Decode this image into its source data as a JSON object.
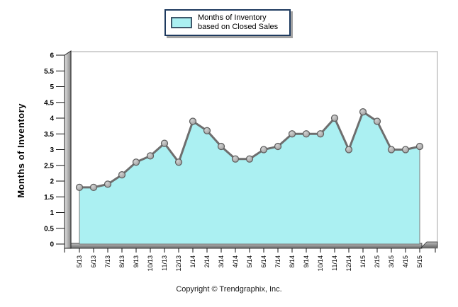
{
  "legend": {
    "label": "Months of Inventory based on Closed Sales"
  },
  "y_axis": {
    "title": "Months of Inventory"
  },
  "footer": {
    "copyright": "Copyright © Trendgraphix, Inc."
  },
  "colors": {
    "series_fill": "#abf0f2",
    "series_edge": "#4fa3ad",
    "series_line": "#6e6e6e",
    "marker_fill": "#9e9e9e",
    "marker_stroke": "#5f5f5f",
    "legend_border": "#1e3a5f",
    "axis_text": "#000000"
  },
  "chart_data": {
    "type": "area",
    "style": "3d-area-with-markers",
    "categories": [
      "5/13",
      "6/13",
      "7/13",
      "8/13",
      "9/13",
      "10/13",
      "11/13",
      "12/13",
      "1/14",
      "2/14",
      "3/14",
      "4/14",
      "5/14",
      "6/14",
      "7/14",
      "8/14",
      "9/14",
      "10/14",
      "11/14",
      "12/14",
      "1/15",
      "2/15",
      "3/15",
      "4/15",
      "5/15"
    ],
    "series": [
      {
        "name": "Months of Inventory based on Closed Sales",
        "values": [
          1.8,
          1.8,
          1.9,
          2.2,
          2.6,
          2.8,
          3.2,
          2.6,
          3.9,
          3.6,
          3.1,
          2.7,
          2.7,
          3.0,
          3.1,
          3.5,
          3.5,
          3.5,
          4.0,
          3.0,
          4.2,
          3.9,
          3.0,
          3.0,
          3.1
        ],
        "marker": "circle"
      }
    ],
    "xlabel": "",
    "ylabel": "Months of Inventory",
    "ylim": [
      0,
      6
    ],
    "ytick_step": 0.5,
    "grid": false,
    "legend_position": "top-center"
  }
}
